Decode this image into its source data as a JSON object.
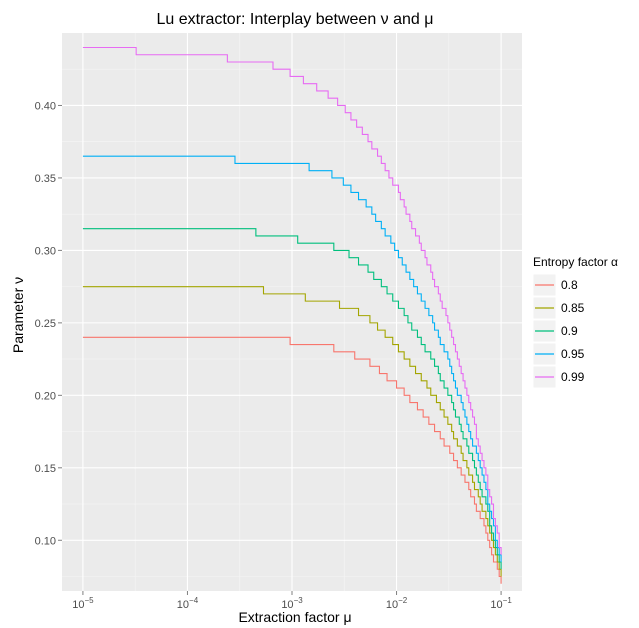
{
  "chart_data": {
    "type": "line",
    "title": "Lu extractor: Interplay between ν and μ",
    "xlabel": "Extraction factor μ",
    "ylabel": "Parameter ν",
    "x_scale": "log10",
    "xlim": [
      1e-05,
      0.1
    ],
    "ylim": [
      0.065,
      0.45
    ],
    "x_ticks": [
      {
        "value": 1e-05,
        "base": "10",
        "exp": "−5"
      },
      {
        "value": 0.0001,
        "base": "10",
        "exp": "−4"
      },
      {
        "value": 0.001,
        "base": "10",
        "exp": "−3"
      },
      {
        "value": 0.01,
        "base": "10",
        "exp": "−2"
      },
      {
        "value": 0.1,
        "base": "10",
        "exp": "−1"
      }
    ],
    "y_ticks": [
      {
        "value": 0.1,
        "label": "0.10"
      },
      {
        "value": 0.15,
        "label": "0.15"
      },
      {
        "value": 0.2,
        "label": "0.20"
      },
      {
        "value": 0.25,
        "label": "0.25"
      },
      {
        "value": 0.3,
        "label": "0.30"
      },
      {
        "value": 0.35,
        "label": "0.35"
      },
      {
        "value": 0.4,
        "label": "0.40"
      }
    ],
    "grid": true,
    "background": "#ebebeb",
    "legend": {
      "title": "Entropy factor α",
      "placement": "right"
    },
    "series": [
      {
        "name": "0.8",
        "color": "#f8766d",
        "x": [
          1e-05,
          0.0001,
          0.0004,
          0.0008,
          0.001,
          0.002,
          0.003,
          0.005,
          0.01,
          0.02,
          0.03,
          0.05,
          0.07,
          0.1
        ],
        "y": [
          0.24,
          0.24,
          0.24,
          0.24,
          0.236,
          0.235,
          0.23,
          0.225,
          0.207,
          0.183,
          0.165,
          0.134,
          0.108,
          0.069
        ]
      },
      {
        "name": "0.85",
        "color": "#a3a500",
        "x": [
          1e-05,
          0.0001,
          0.0004,
          0.0008,
          0.001,
          0.002,
          0.003,
          0.005,
          0.01,
          0.02,
          0.03,
          0.05,
          0.07,
          0.1
        ],
        "y": [
          0.274,
          0.274,
          0.274,
          0.27,
          0.269,
          0.265,
          0.262,
          0.255,
          0.234,
          0.205,
          0.184,
          0.146,
          0.116,
          0.074
        ]
      },
      {
        "name": "0.9",
        "color": "#00bf7d",
        "x": [
          1e-05,
          0.0001,
          0.0004,
          0.0008,
          0.001,
          0.002,
          0.003,
          0.005,
          0.01,
          0.02,
          0.03,
          0.05,
          0.07,
          0.1
        ],
        "y": [
          0.313,
          0.313,
          0.313,
          0.309,
          0.308,
          0.305,
          0.3,
          0.289,
          0.264,
          0.229,
          0.204,
          0.16,
          0.126,
          0.079
        ]
      },
      {
        "name": "0.95",
        "color": "#00b0f6",
        "x": [
          1e-05,
          0.0001,
          0.0004,
          0.0008,
          0.001,
          0.002,
          0.003,
          0.005,
          0.01,
          0.02,
          0.03,
          0.05,
          0.07,
          0.1
        ],
        "y": [
          0.367,
          0.364,
          0.362,
          0.362,
          0.36,
          0.355,
          0.348,
          0.333,
          0.3,
          0.257,
          0.227,
          0.175,
          0.136,
          0.084
        ]
      },
      {
        "name": "0.99",
        "color": "#e76bf3",
        "x": [
          1e-05,
          0.0001,
          0.0004,
          0.0008,
          0.001,
          0.002,
          0.003,
          0.005,
          0.01,
          0.02,
          0.03,
          0.05,
          0.07,
          0.1
        ],
        "y": [
          0.44,
          0.435,
          0.431,
          0.426,
          0.421,
          0.41,
          0.4,
          0.38,
          0.343,
          0.29,
          0.253,
          0.192,
          0.147,
          0.089
        ]
      }
    ]
  }
}
